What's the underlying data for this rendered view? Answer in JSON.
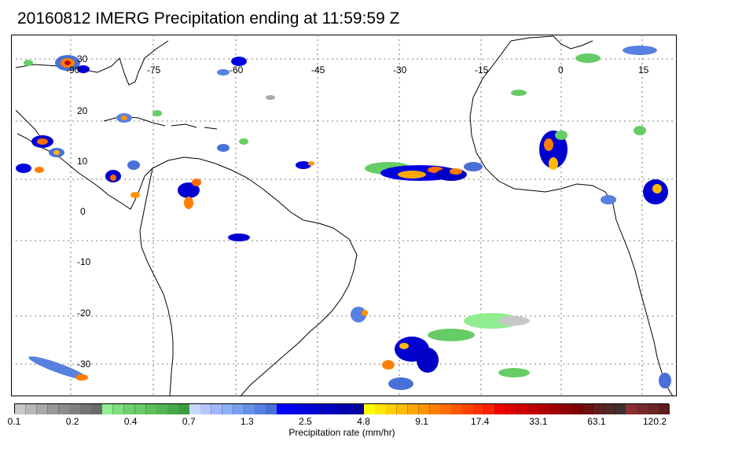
{
  "title": "20160812 IMERG Precipitation ending at 11:59:59 Z",
  "longitude_labels": [
    "-90",
    "-75",
    "-60",
    "-45",
    "-30",
    "-15",
    "0",
    "15"
  ],
  "latitude_labels": [
    "30",
    "20",
    "10",
    "0",
    "-10",
    "-20",
    "-30"
  ],
  "colorbar": {
    "caption": "Precipitation rate (mm/hr)",
    "tick_labels": [
      "0.1",
      "0.2",
      "0.4",
      "0.7",
      "1.3",
      "2.5",
      "4.8",
      "9.1",
      "17.4",
      "33.1",
      "63.1",
      "120.2"
    ],
    "colors": [
      "#c8c8c8",
      "#b8b8b8",
      "#a8a8a8",
      "#989898",
      "#8c8c8c",
      "#808080",
      "#747474",
      "#6a6a6a",
      "#90ee90",
      "#80e080",
      "#70d070",
      "#66cc66",
      "#5cc05c",
      "#52b452",
      "#48a848",
      "#3e9c3e",
      "#c8d8ff",
      "#b4c8ff",
      "#a0b8ff",
      "#8cb0f8",
      "#78a0f0",
      "#6890e8",
      "#5880e0",
      "#4870d8",
      "#0000ff",
      "#0000f0",
      "#0000e0",
      "#0000d0",
      "#0000c4",
      "#0000b8",
      "#0000ac",
      "#0000a0",
      "#ffff00",
      "#ffe600",
      "#ffd000",
      "#ffbc00",
      "#ffa800",
      "#ff9400",
      "#ff8000",
      "#ff6c00",
      "#ff5800",
      "#ff4400",
      "#ff3000",
      "#ff2000",
      "#f00000",
      "#e00000",
      "#d00000",
      "#c00000",
      "#b00000",
      "#a00000",
      "#900000",
      "#800000",
      "#701010",
      "#602020",
      "#502828",
      "#403030",
      "#883030",
      "#7a2a2a",
      "#6c2424",
      "#5e1e1e"
    ]
  }
}
